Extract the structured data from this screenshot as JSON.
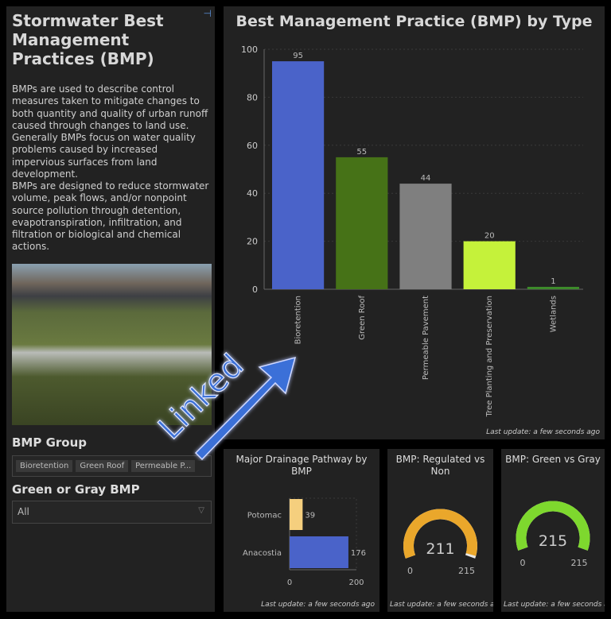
{
  "sidebar": {
    "title": "Stormwater Best Management Practices (BMP)",
    "pin_icon": "pin-icon",
    "paragraph1": "BMPs are used to describe control measures taken to mitigate changes to both quantity and quality of urban runoff caused through changes to land use. Generally BMPs focus on water quality problems caused by increased impervious surfaces from land development.",
    "paragraph2": "BMPs are designed to reduce stormwater volume, peak flows, and/or nonpoint source pollution through detention, evapotranspiration, infiltration, and filtration or biological and chemical actions.",
    "group_label": "BMP Group",
    "group_chips": [
      "Bioretention",
      "Green Roof",
      "Permeable P..."
    ],
    "green_gray_label": "Green or Gray BMP",
    "green_gray_value": "All"
  },
  "overlay": {
    "text": "Linked",
    "color": "#3a6fd8"
  },
  "update_text": "Last update: a few seconds ago",
  "chart_data": [
    {
      "type": "bar",
      "title": "Best Management Practice (BMP) by Type",
      "categories": [
        "Bioretention",
        "Green Roof",
        "Permeable Pavement",
        "Tree Planting and Preservation",
        "Wetlands"
      ],
      "values": [
        95,
        55,
        44,
        20,
        1
      ],
      "colors": [
        "#4a63c9",
        "#467217",
        "#7f7f7f",
        "#c5f23a",
        "#3d8a2b"
      ],
      "ylim": [
        0,
        100
      ],
      "yticks": [
        0,
        20,
        40,
        60,
        80,
        100
      ],
      "grid": true
    },
    {
      "type": "bar",
      "orientation": "horizontal",
      "title": "Major Drainage Pathway by BMP",
      "categories": [
        "Potomac",
        "Anacostia"
      ],
      "values": [
        39,
        176
      ],
      "colors": [
        "#f5cf7e",
        "#4a63c9"
      ],
      "xlim": [
        0,
        200
      ],
      "xticks": [
        0,
        200
      ]
    },
    {
      "type": "gauge",
      "title": "BMP: Regulated vs Non",
      "value": 211,
      "min": 0,
      "max": 215,
      "color": "#eaa72b"
    },
    {
      "type": "gauge",
      "title": "BMP: Green vs Gray",
      "value": 215,
      "min": 0,
      "max": 215,
      "color": "#7ed82e"
    }
  ]
}
